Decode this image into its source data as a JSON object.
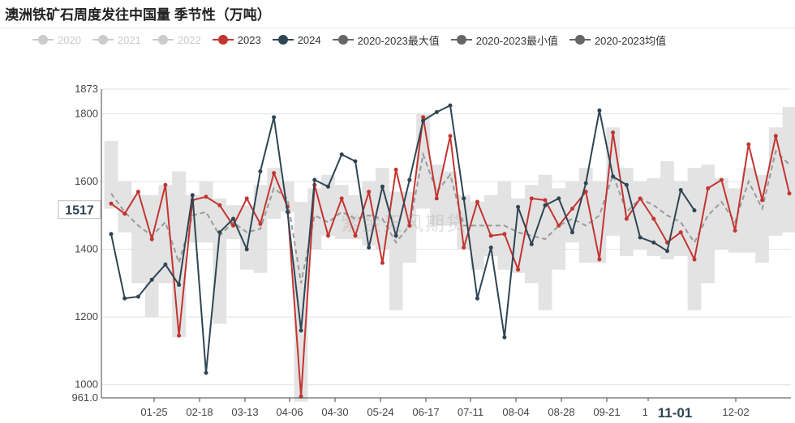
{
  "title": "澳洲铁矿石周度发往中国量 季节性（万吨）",
  "watermark": "紫金天风期货",
  "legend": [
    {
      "name": "2020",
      "color": "#cccccc",
      "active": false
    },
    {
      "name": "2021",
      "color": "#cccccc",
      "active": false
    },
    {
      "name": "2022",
      "color": "#cccccc",
      "active": false
    },
    {
      "name": "2023",
      "color": "#c23531",
      "active": true
    },
    {
      "name": "2024",
      "color": "#2f4554",
      "active": true
    },
    {
      "name": "2020-2023最大值",
      "color": "#666666",
      "active": true
    },
    {
      "name": "2020-2023最小值",
      "color": "#666666",
      "active": true
    },
    {
      "name": "2020-2023均值",
      "color": "#666666",
      "active": true
    }
  ],
  "chart_data": {
    "type": "line",
    "title": "澳洲铁矿石周度发往中国量 季节性（万吨）",
    "xlabel": "",
    "ylabel": "",
    "ylim": [
      961.0,
      1873
    ],
    "yticks": [
      "961.0",
      "1000",
      "1200",
      "1400",
      "1600",
      "1800",
      "1873"
    ],
    "xticks": [
      "01-25",
      "02-18",
      "03-13",
      "04-06",
      "04-30",
      "05-24",
      "06-17",
      "07-11",
      "08-04",
      "08-28",
      "09-21",
      "10",
      "12-02"
    ],
    "hover_y_label": "1517",
    "hover_x_label": "11-01",
    "grid": true,
    "series": [
      {
        "name": "2023",
        "color": "#c23531",
        "values": [
          1535,
          1505,
          1570,
          1430,
          1590,
          1145,
          1545,
          1555,
          1530,
          1470,
          1550,
          1475,
          1625,
          1525,
          965,
          1590,
          1440,
          1550,
          1440,
          1570,
          1360,
          1635,
          1470,
          1790,
          1550,
          1735,
          1405,
          1540,
          1440,
          1445,
          1340,
          1550,
          1545,
          1470,
          1520,
          1570,
          1370,
          1745,
          1490,
          1550,
          1490,
          1420,
          1450,
          1370,
          1580,
          1605,
          1455,
          1710,
          1545,
          1735,
          1565
        ]
      },
      {
        "name": "2024",
        "color": "#2f4554",
        "values": [
          1445,
          1255,
          1260,
          1310,
          1355,
          1295,
          1560,
          1035,
          1450,
          1490,
          1400,
          1630,
          1790,
          1510,
          1160,
          1605,
          1585,
          1680,
          1660,
          1405,
          1585,
          1440,
          1605,
          1780,
          1805,
          1825,
          1550,
          1255,
          1405,
          1140,
          1525,
          1415,
          1530,
          1550,
          1450,
          1595,
          1810,
          1615,
          1590,
          1435,
          1420,
          1395,
          1575,
          1515
        ]
      },
      {
        "name": "2020-2023最大值",
        "color": "#666666",
        "values": [
          1720,
          1600,
          1560,
          1560,
          1590,
          1630,
          1560,
          1600,
          1550,
          1530,
          1530,
          1590,
          1640,
          1600,
          1540,
          1580,
          1620,
          1590,
          1560,
          1600,
          1640,
          1570,
          1570,
          1800,
          1650,
          1630,
          1560,
          1540,
          1560,
          1600,
          1550,
          1590,
          1620,
          1580,
          1600,
          1640,
          1600,
          1760,
          1640,
          1600,
          1610,
          1660,
          1600,
          1640,
          1650,
          1610,
          1580,
          1640,
          1620,
          1760,
          1820
        ]
      },
      {
        "name": "2020-2023最小值",
        "color": "#666666",
        "values": [
          1520,
          1450,
          1300,
          1200,
          1300,
          1140,
          1420,
          1420,
          1180,
          1430,
          1340,
          1330,
          1490,
          1510,
          950,
          1400,
          1440,
          1430,
          1430,
          1410,
          1400,
          1220,
          1360,
          1520,
          1470,
          1470,
          1400,
          1340,
          1380,
          1340,
          1330,
          1300,
          1220,
          1340,
          1420,
          1360,
          1360,
          1440,
          1380,
          1400,
          1380,
          1370,
          1380,
          1220,
          1300,
          1400,
          1390,
          1390,
          1360,
          1440,
          1450
        ]
      },
      {
        "name": "2020-2023均值",
        "color": "#999999",
        "values": [
          1565,
          1510,
          1470,
          1440,
          1480,
          1360,
          1500,
          1510,
          1440,
          1480,
          1450,
          1460,
          1580,
          1550,
          1300,
          1500,
          1480,
          1510,
          1490,
          1500,
          1490,
          1420,
          1470,
          1680,
          1570,
          1620,
          1470,
          1470,
          1470,
          1470,
          1450,
          1440,
          1430,
          1470,
          1490,
          1470,
          1500,
          1620,
          1510,
          1550,
          1530,
          1500,
          1480,
          1420,
          1500,
          1540,
          1480,
          1600,
          1520,
          1690,
          1650
        ]
      }
    ]
  }
}
